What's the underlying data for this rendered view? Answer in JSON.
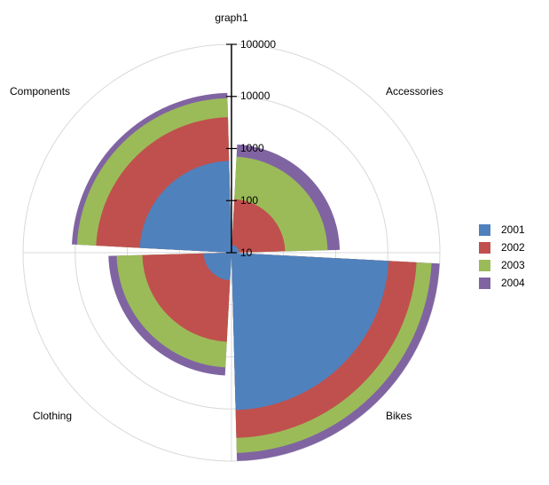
{
  "chart_data": {
    "type": "polar-area",
    "title": "graph1",
    "categories": [
      "Accessories",
      "Bikes",
      "Clothing",
      "Components"
    ],
    "series": [
      {
        "name": "2001",
        "color": "#4F81BD",
        "values": [
          14,
          10500,
          34,
          580
        ]
      },
      {
        "name": "2002",
        "color": "#C0504D",
        "values": [
          107,
          36000,
          515,
          4000
        ]
      },
      {
        "name": "2003",
        "color": "#9BBB59",
        "values": [
          700,
          70000,
          1600,
          9300
        ]
      },
      {
        "name": "2004",
        "color": "#8064A2",
        "values": [
          1200,
          100000,
          2300,
          11700
        ]
      }
    ],
    "radial_axis": {
      "scale": "log",
      "ticks": [
        "10",
        "100",
        "1000",
        "10000",
        "100000"
      ],
      "range": [
        10,
        100000
      ]
    },
    "grid": true,
    "legend_position": "right"
  },
  "labels": {
    "title": "graph1",
    "categories": {
      "components": "Components",
      "accessories": "Accessories",
      "clothing": "Clothing",
      "bikes": "Bikes"
    },
    "ticks": [
      "10",
      "100",
      "1000",
      "10000",
      "100000"
    ]
  },
  "legend": [
    {
      "label": "2001",
      "color": "#4F81BD"
    },
    {
      "label": "2002",
      "color": "#C0504D"
    },
    {
      "label": "2003",
      "color": "#9BBB59"
    },
    {
      "label": "2004",
      "color": "#8064A2"
    }
  ]
}
